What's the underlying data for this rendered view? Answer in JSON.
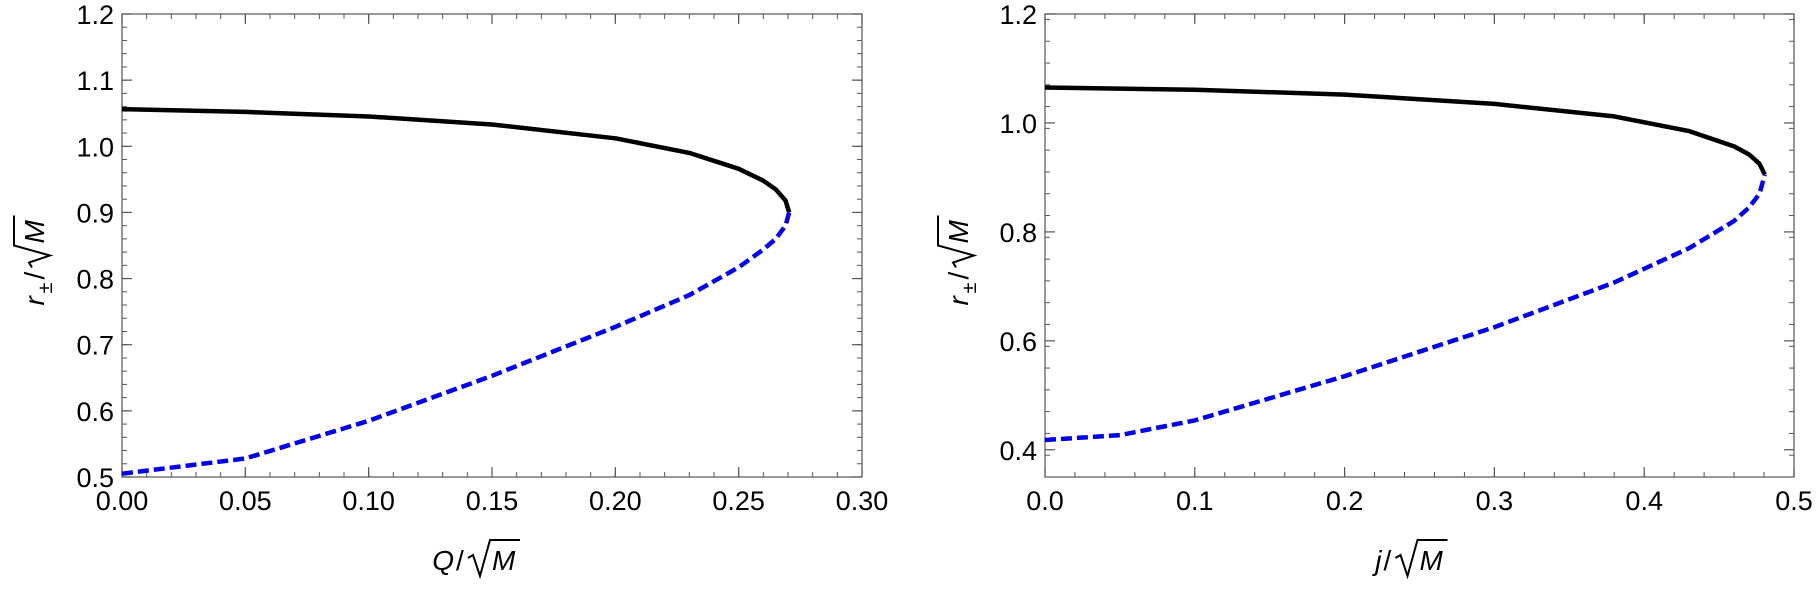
{
  "chart_data": [
    {
      "type": "line",
      "xlabel_var": "Q",
      "ylabel_var": "r",
      "ylabel_sub": "±",
      "ylabel_den": "M",
      "xlabel_den": "M",
      "xlim": [
        0,
        0.3
      ],
      "ylim": [
        0.5,
        1.2
      ],
      "xticks": [
        "0.00",
        "0.05",
        "0.10",
        "0.15",
        "0.20",
        "0.25",
        "0.30"
      ],
      "yticks": [
        "0.5",
        "0.6",
        "0.7",
        "0.8",
        "0.9",
        "1.0",
        "1.1",
        "1.2"
      ],
      "x_minor_step": 0.01,
      "y_minor_step": 0.02,
      "series": [
        {
          "style": "solid",
          "color": "#000000",
          "x": [
            0.0,
            0.05,
            0.1,
            0.15,
            0.2,
            0.23,
            0.25,
            0.26,
            0.265,
            0.269,
            0.2705
          ],
          "y": [
            1.056,
            1.052,
            1.045,
            1.033,
            1.012,
            0.99,
            0.966,
            0.948,
            0.935,
            0.918,
            0.9
          ]
        },
        {
          "style": "dashed",
          "color": "#0000ee",
          "x": [
            0.0,
            0.05,
            0.1,
            0.15,
            0.2,
            0.23,
            0.25,
            0.26,
            0.265,
            0.269,
            0.2705
          ],
          "y": [
            0.505,
            0.528,
            0.585,
            0.653,
            0.727,
            0.775,
            0.817,
            0.844,
            0.86,
            0.88,
            0.9
          ]
        }
      ]
    },
    {
      "type": "line",
      "xlabel_var": "j",
      "ylabel_var": "r",
      "ylabel_sub": "±",
      "ylabel_den": "M",
      "xlabel_den": "M",
      "xlim": [
        0,
        0.5
      ],
      "ylim": [
        0.35,
        1.2
      ],
      "xticks": [
        "0.0",
        "0.1",
        "0.2",
        "0.3",
        "0.4",
        "0.5"
      ],
      "ytick_values": [
        0.4,
        0.6,
        0.8,
        1.0,
        1.2
      ],
      "yticks": [
        "0.4",
        "0.6",
        "0.8",
        "1.0",
        "1.2"
      ],
      "x_minor_step": 0.02,
      "y_minor_step": 0.04,
      "series": [
        {
          "style": "solid",
          "color": "#000000",
          "x": [
            0.0,
            0.1,
            0.2,
            0.3,
            0.38,
            0.43,
            0.46,
            0.47,
            0.477,
            0.4805
          ],
          "y": [
            1.065,
            1.061,
            1.052,
            1.035,
            1.012,
            0.985,
            0.957,
            0.942,
            0.925,
            0.905
          ]
        },
        {
          "style": "dashed",
          "color": "#0000ee",
          "x": [
            0.0,
            0.05,
            0.1,
            0.2,
            0.3,
            0.38,
            0.43,
            0.46,
            0.47,
            0.477,
            0.4805
          ],
          "y": [
            0.418,
            0.427,
            0.454,
            0.535,
            0.625,
            0.707,
            0.77,
            0.82,
            0.845,
            0.87,
            0.905
          ]
        }
      ]
    }
  ]
}
